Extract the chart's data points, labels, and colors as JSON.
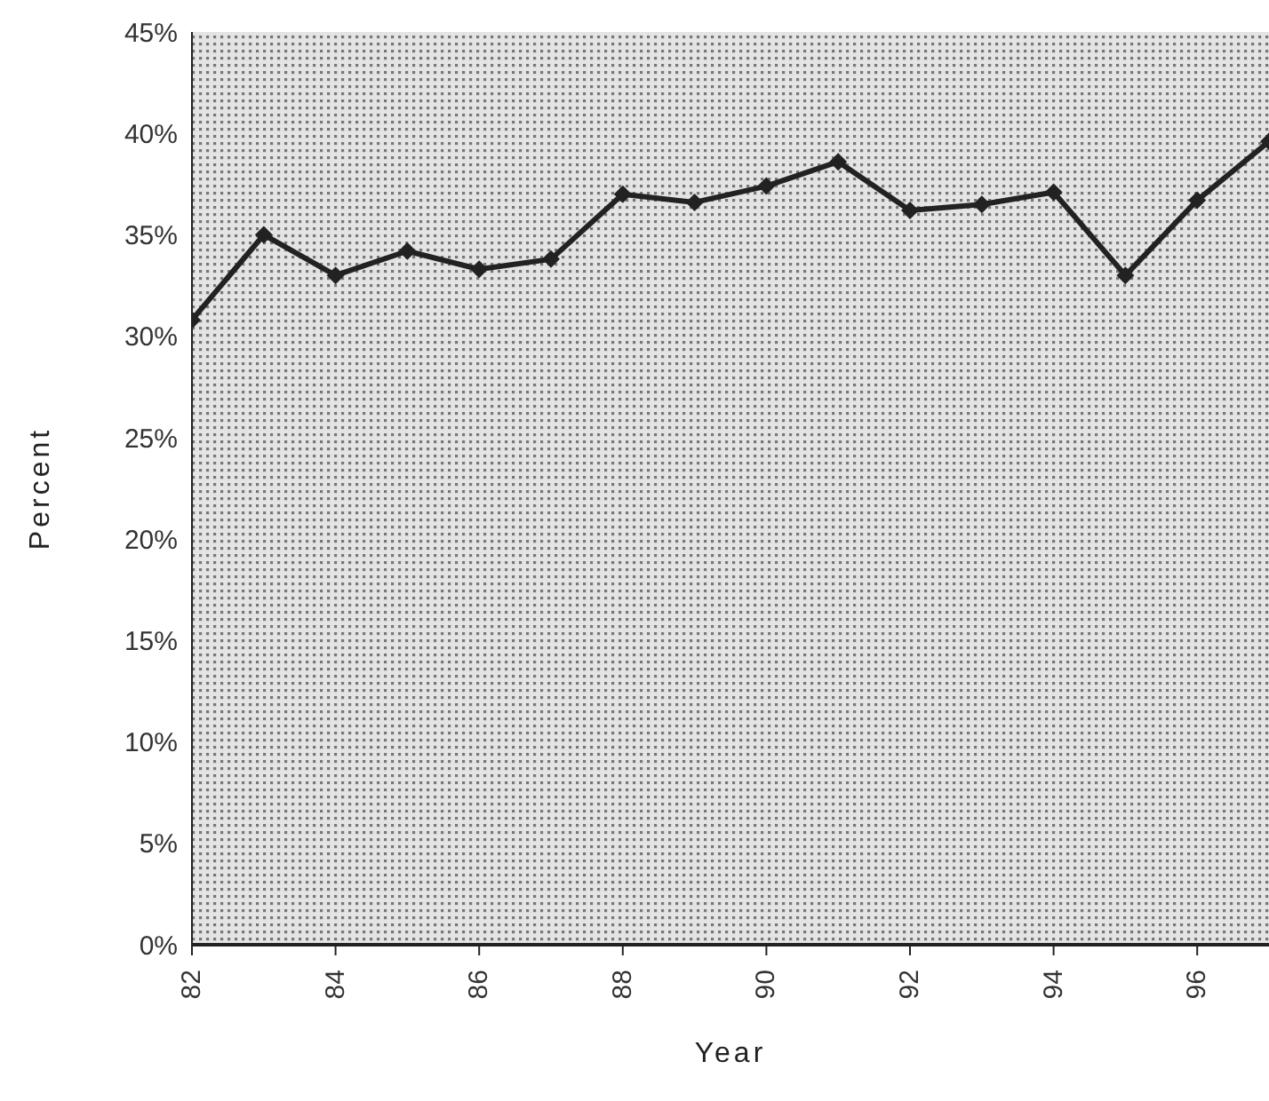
{
  "chart_data": {
    "type": "line",
    "xlabel": "Year",
    "ylabel": "Percent",
    "x": [
      82,
      83,
      84,
      85,
      86,
      87,
      88,
      89,
      90,
      91,
      92,
      93,
      94,
      95,
      96,
      97
    ],
    "series": [
      {
        "color": "#222222",
        "values": [
          30.8,
          35.0,
          33.0,
          34.2,
          33.3,
          33.8,
          37.0,
          36.6,
          37.4,
          38.6,
          36.2,
          36.5,
          37.1,
          33.0,
          36.7,
          39.6
        ]
      }
    ],
    "xlim": [
      82,
      97
    ],
    "xticks": [
      82,
      84,
      86,
      88,
      90,
      92,
      94,
      96
    ],
    "ylim": [
      0,
      45
    ],
    "yticks": [
      {
        "value": 0,
        "label": "0%"
      },
      {
        "value": 5,
        "label": "5%"
      },
      {
        "value": 10,
        "label": "10%"
      },
      {
        "value": 15,
        "label": "15%"
      },
      {
        "value": 20,
        "label": "20%"
      },
      {
        "value": 25,
        "label": "25%"
      },
      {
        "value": 30,
        "label": "30%"
      },
      {
        "value": 35,
        "label": "35%"
      },
      {
        "value": 40,
        "label": "40%"
      },
      {
        "value": 45,
        "label": "45%"
      }
    ],
    "marker": "diamond",
    "grid": false
  }
}
